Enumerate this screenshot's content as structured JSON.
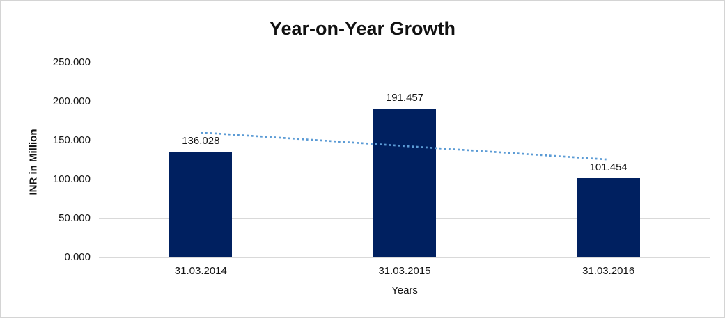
{
  "chart_data": {
    "type": "bar",
    "title": "Year-on-Year Growth",
    "xlabel": "Years",
    "ylabel": "INR in Million",
    "categories": [
      "31.03.2014",
      "31.03.2015",
      "31.03.2016"
    ],
    "values": [
      136.028,
      191.457,
      101.454
    ],
    "data_labels": [
      "136.028",
      "191.457",
      "101.454"
    ],
    "ylim": [
      0,
      250
    ],
    "ytick_step": 50,
    "ytick_labels": [
      "0.000",
      "50.000",
      "100.000",
      "150.000",
      "200.000",
      "250.000"
    ],
    "grid": true,
    "legend": false,
    "bar_color": "#002060",
    "gridline_color": "#d9d9d9",
    "trendline": {
      "type": "linear",
      "style": "dotted",
      "color": "#5b9bd5",
      "start_value": 160.27,
      "end_value": 125.69
    }
  }
}
